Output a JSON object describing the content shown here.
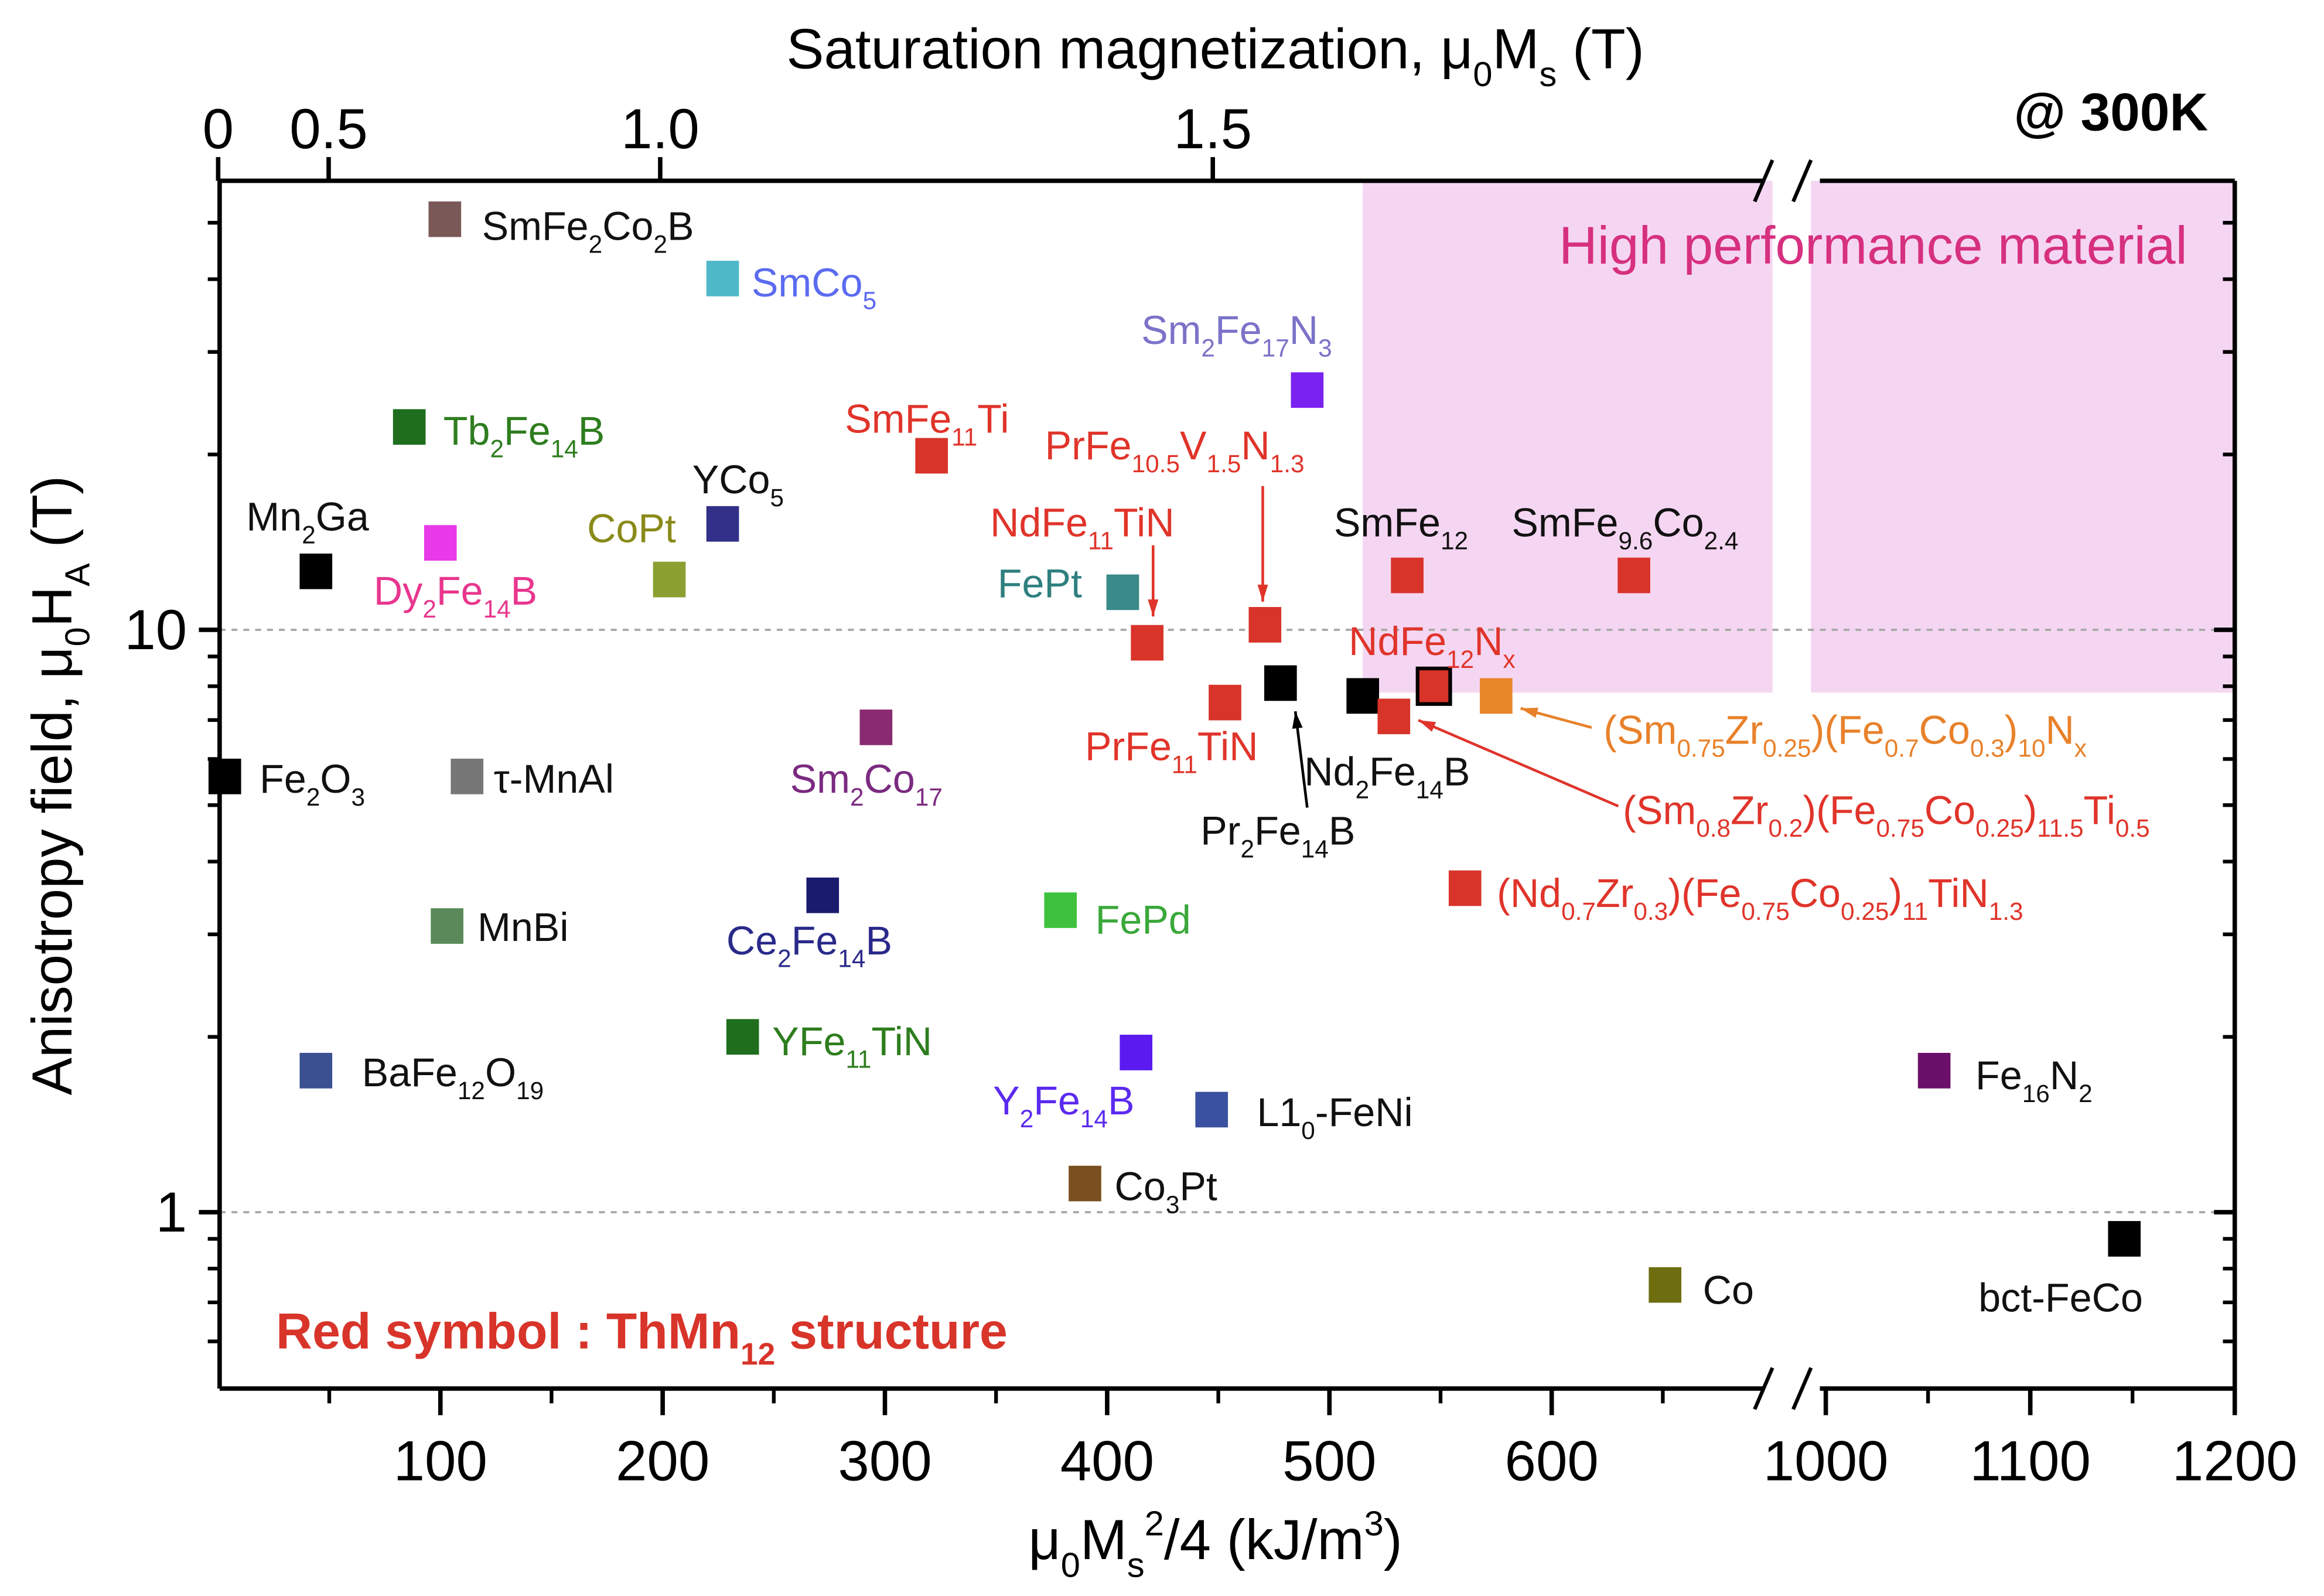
{
  "chart_data": {
    "type": "scatter",
    "title_top_axis": "Saturation magnetization, μ_{0}M_{s} (T)",
    "xlabel": "μ_{0}M_{s}^{2}/4 (kJ/m^{3})",
    "ylabel": "Anisotropy field, μ_{0}H_{A} (T)",
    "temperature_label": "@ 300K",
    "region_label": "High performance material",
    "note": "Red symbol : ThMn_{12} structure",
    "y_scale": "log",
    "ylim": [
      0.5,
      59
    ],
    "xlim_segments": [
      [
        0,
        700
      ],
      [
        970,
        1200
      ]
    ],
    "x_ticks": [
      100,
      200,
      300,
      400,
      500,
      600,
      1000,
      1100,
      1200
    ],
    "x_tick_labels": [
      "100",
      "200",
      "300",
      "400",
      "500",
      "600",
      "1000",
      "1100",
      "1200"
    ],
    "top_ticks": [
      0,
      0.5,
      1.0,
      1.5
    ],
    "top_tick_labels": [
      "0",
      "0.5",
      "1.0",
      "1.5"
    ],
    "y_ticks": [
      1,
      10
    ],
    "y_tick_labels": [
      "1",
      "10"
    ],
    "high_performance_region": {
      "x_min": 515,
      "y_min": 7.8
    },
    "colors": {
      "thmn12": "#d8342a",
      "region": "#f5d6f2",
      "region_text": "#d6307f"
    },
    "points": [
      {
        "label": "SmFe_{2}Co_{2}B",
        "x": 102,
        "y": 50.7,
        "color": "#7a5858",
        "label_color": "#111111"
      },
      {
        "label": "SmCo_{5}",
        "x": 227,
        "y": 40.1,
        "color": "#4fb8c8",
        "label_color": "#5b6bf0"
      },
      {
        "label": "Sm_{2}Fe_{17}N_{3}",
        "x": 490,
        "y": 25.8,
        "color": "#7a22f0",
        "label_color": "#7b72c8"
      },
      {
        "label": "Tb_{2}Fe_{14}B",
        "x": 86,
        "y": 22.3,
        "color": "#1e6e1e",
        "label_color": "#2e7d1e"
      },
      {
        "label": "SmFe_{11}Ti",
        "x": 321,
        "y": 19.9,
        "color": "#d8342a",
        "label_color": "#e0342a"
      },
      {
        "label": "YCo_{5}",
        "x": 227,
        "y": 15.2,
        "color": "#33308a",
        "label_color": "#111111"
      },
      {
        "label": "Dy_{2}Fe_{14}B",
        "x": 100,
        "y": 14.1,
        "color": "#e83ae8",
        "label_color": "#e8368e"
      },
      {
        "label": "Mn_{2}Ga",
        "x": 44,
        "y": 12.6,
        "color": "#000000",
        "label_color": "#111111"
      },
      {
        "label": "CoPt",
        "x": 203,
        "y": 12.2,
        "color": "#8aa030",
        "label_color": "#8a8a1a"
      },
      {
        "label": "FePt",
        "x": 407,
        "y": 11.6,
        "color": "#3a8a8a",
        "label_color": "#2f7f7f"
      },
      {
        "label": "SmFe_{12}",
        "x": 535,
        "y": 12.4,
        "color": "#d8342a",
        "label_color": "#111111"
      },
      {
        "label": "SmFe_{9.6}Co_{2.4}",
        "x": 637,
        "y": 12.4,
        "color": "#d8342a",
        "label_color": "#111111"
      },
      {
        "label": "NdFe_{11}TiN",
        "x": 418,
        "y": 9.5,
        "color": "#d8342a",
        "label_color": "#e0342a"
      },
      {
        "label": "PrFe_{10.5}V_{1.5}N_{1.3}",
        "x": 471,
        "y": 10.2,
        "color": "#d8342a",
        "label_color": "#e0342a"
      },
      {
        "label": "NdFe_{12}N_{x}",
        "x": 547,
        "y": 8.0,
        "color": "#d8342a",
        "label_color": "#e0342a",
        "outlined": true
      },
      {
        "label": "Nd_{2}Fe_{14}B",
        "x": 515,
        "y": 7.7,
        "color": "#000000",
        "label_color": "#111111"
      },
      {
        "label": "Pr_{2}Fe_{14}B",
        "x": 478,
        "y": 8.1,
        "color": "#000000",
        "label_color": "#111111"
      },
      {
        "label": "PrFe_{11}TiN",
        "x": 453,
        "y": 7.5,
        "color": "#d8342a",
        "label_color": "#e0342a"
      },
      {
        "label": "(Sm_{0.75}Zr_{0.25})(Fe_{0.7}Co_{0.3})_{10}N_{x}",
        "x": 575,
        "y": 7.7,
        "color": "#e8862a",
        "label_color": "#e8812a"
      },
      {
        "label": "(Sm_{0.8}Zr_{0.2})(Fe_{0.75}Co_{0.25})_{11.5}Ti_{0.5}",
        "x": 529,
        "y": 7.1,
        "color": "#d8342a",
        "label_color": "#e0342a"
      },
      {
        "label": "Fe_{2}O_{3}",
        "x": 3,
        "y": 5.6,
        "color": "#000000",
        "label_color": "#111111"
      },
      {
        "label": "τ-MnAl",
        "x": 112,
        "y": 5.6,
        "color": "#777777",
        "label_color": "#111111"
      },
      {
        "label": "Sm_{2}Co_{17}",
        "x": 296,
        "y": 6.8,
        "color": "#8a2a70",
        "label_color": "#7b2a80"
      },
      {
        "label": "(Nd_{0.7}Zr_{0.3})(Fe_{0.75}Co_{0.25})_{11}TiN_{1.3}",
        "x": 561,
        "y": 3.6,
        "color": "#d8342a",
        "label_color": "#e0342a"
      },
      {
        "label": "Ce_{2}Fe_{14}B",
        "x": 272,
        "y": 3.5,
        "color": "#1a1a6e",
        "label_color": "#2a2a8a"
      },
      {
        "label": "MnBi",
        "x": 103,
        "y": 3.1,
        "color": "#5a8a5a",
        "label_color": "#111111"
      },
      {
        "label": "FePd",
        "x": 379,
        "y": 3.3,
        "color": "#3ec23e",
        "label_color": "#3aa83a"
      },
      {
        "label": "YFe_{11}TiN",
        "x": 236,
        "y": 2.0,
        "color": "#1e6e1e",
        "label_color": "#2e7d1e"
      },
      {
        "label": "BaFe_{12}O_{19}",
        "x": 44,
        "y": 1.75,
        "color": "#3a5090",
        "label_color": "#111111"
      },
      {
        "label": "Y_{2}Fe_{14}B",
        "x": 413,
        "y": 1.88,
        "color": "#5a1af0",
        "label_color": "#5b2af0"
      },
      {
        "label": "L1_{0}-FeNi",
        "x": 447,
        "y": 1.5,
        "color": "#3a50a0",
        "label_color": "#111111"
      },
      {
        "label": "Co_{3}Pt",
        "x": 390,
        "y": 1.12,
        "color": "#7a5020",
        "label_color": "#111111"
      },
      {
        "label": "Co",
        "x": 651,
        "y": 0.75,
        "color": "#6e6e10",
        "label_color": "#111111"
      },
      {
        "label": "Fe_{16}N_{2}",
        "x": 1053,
        "y": 1.75,
        "color": "#6a106a",
        "label_color": "#111111"
      },
      {
        "label": "bct-FeCo",
        "x": 1146,
        "y": 0.9,
        "color": "#000000",
        "label_color": "#111111"
      }
    ]
  }
}
